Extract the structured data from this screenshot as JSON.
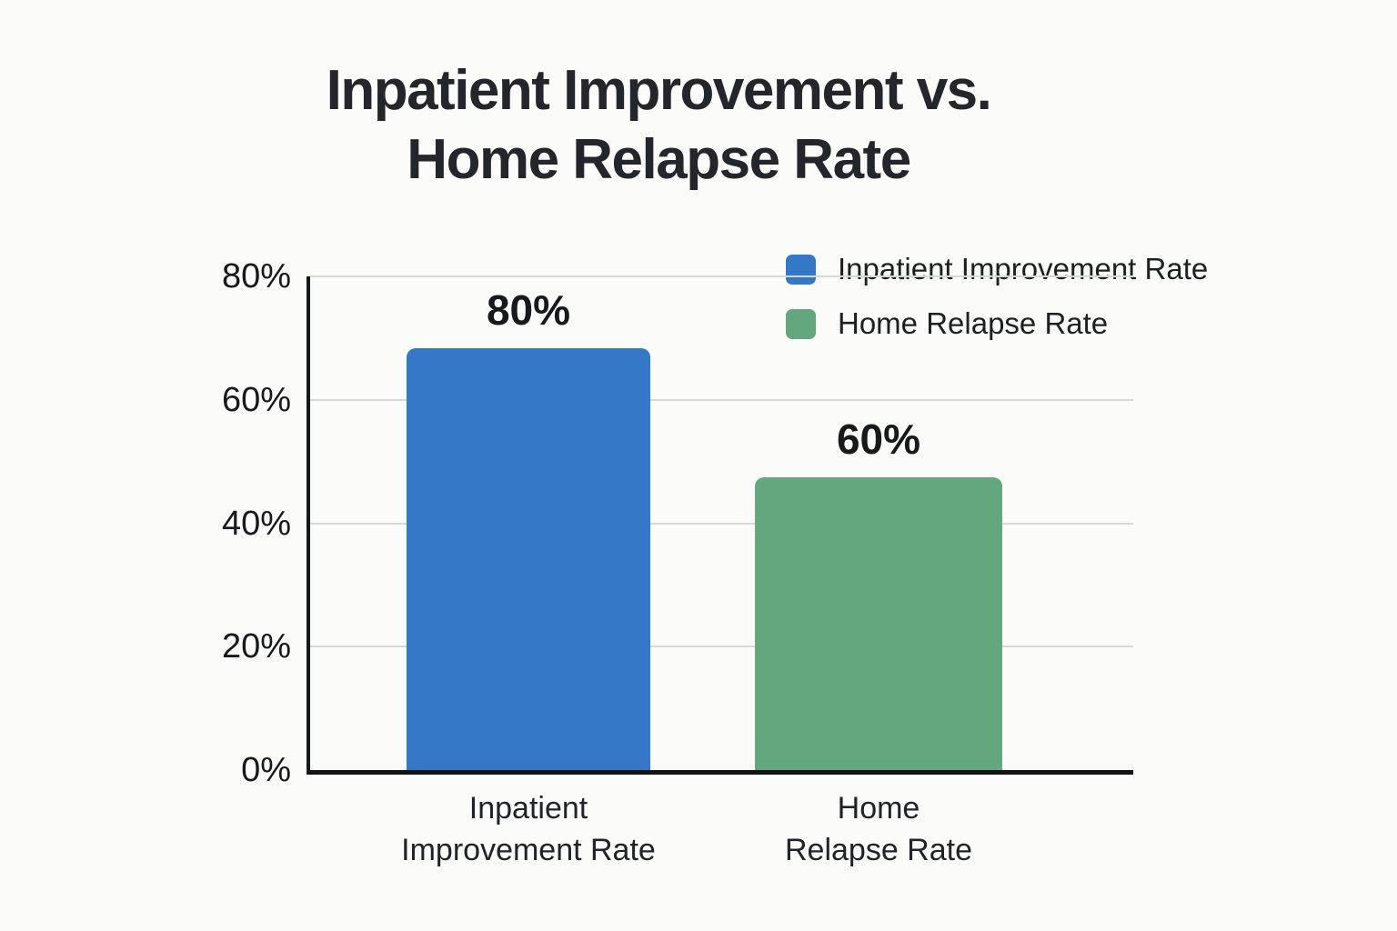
{
  "title": {
    "line1": "Inpatient Improvement vs.",
    "line2": "Home Relapse Rate"
  },
  "legend": {
    "items": [
      {
        "label": "Inpatient Improvement Rate",
        "color": "#3478C7"
      },
      {
        "label": "Home Relapse Rate",
        "color": "#64A77F"
      }
    ]
  },
  "chart_data": {
    "type": "bar",
    "title": "Inpatient Improvement vs. Home Relapse Rate",
    "categories": [
      "Inpatient Improvement Rate",
      "Home Relapse Rate"
    ],
    "category_lines": [
      [
        "Inpatient",
        "Improvement Rate"
      ],
      [
        "Home",
        "Relapse Rate"
      ]
    ],
    "values": [
      80,
      60
    ],
    "value_labels": [
      "80%",
      "60%"
    ],
    "bar_colors": [
      "#3478C7",
      "#64A77F"
    ],
    "ylim": [
      0,
      80
    ],
    "ytick_labels": [
      "80%",
      "60%",
      "40%",
      "20%",
      "0%"
    ],
    "grid": "horizontal, 20% intervals, light gray",
    "legend_position": "top-right",
    "bar_heights_as_drawn_pct_of_axis": [
      68.4,
      47.4
    ]
  }
}
